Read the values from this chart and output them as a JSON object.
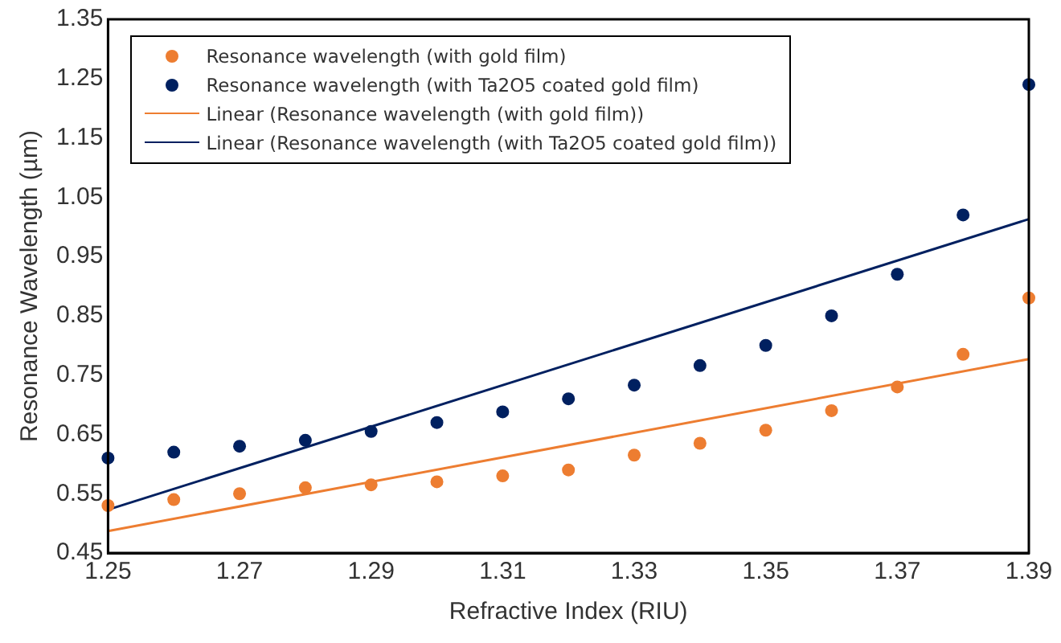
{
  "chart_data": {
    "type": "scatter",
    "xlabel": "Refractive Index (RIU)",
    "ylabel": "Resonance Wavelength (µm)",
    "xlim": [
      1.25,
      1.39
    ],
    "xticks": [
      1.25,
      1.27,
      1.29,
      1.31,
      1.33,
      1.35,
      1.37,
      1.39
    ],
    "ylim": [
      0.45,
      1.35
    ],
    "yticks": [
      0.45,
      0.55,
      0.65,
      0.75,
      0.85,
      0.95,
      1.05,
      1.15,
      1.25,
      1.35
    ],
    "grid": false,
    "legend": "top left",
    "series": [
      {
        "name": "Resonance wavelength (with gold film)",
        "type": "scatter",
        "marker": "circle",
        "color": "#ed7d31",
        "x": [
          1.25,
          1.26,
          1.27,
          1.28,
          1.29,
          1.3,
          1.31,
          1.32,
          1.33,
          1.34,
          1.35,
          1.36,
          1.37,
          1.38,
          1.39
        ],
        "values": [
          0.53,
          0.54,
          0.55,
          0.56,
          0.565,
          0.57,
          0.58,
          0.59,
          0.615,
          0.635,
          0.657,
          0.69,
          0.73,
          0.785,
          0.88
        ]
      },
      {
        "name": "Resonance wavelength (with Ta2O5 coated gold film)",
        "type": "scatter",
        "marker": "circle",
        "color": "#002060",
        "x": [
          1.25,
          1.26,
          1.27,
          1.28,
          1.29,
          1.3,
          1.31,
          1.32,
          1.33,
          1.34,
          1.35,
          1.36,
          1.37,
          1.38,
          1.39
        ],
        "values": [
          0.61,
          0.62,
          0.63,
          0.64,
          0.655,
          0.67,
          0.688,
          0.71,
          0.733,
          0.766,
          0.8,
          0.85,
          0.92,
          1.02,
          1.24
        ]
      },
      {
        "name": "Linear (Resonance wavelength (with gold film))",
        "type": "line",
        "marker": "none",
        "line_style": "solid",
        "color": "#ed7d31",
        "x": [
          1.25,
          1.39
        ],
        "values": [
          0.487,
          0.777
        ]
      },
      {
        "name": "Linear (Resonance wavelength (with Ta2O5 coated gold film))",
        "type": "line",
        "marker": "none",
        "line_style": "solid",
        "color": "#002060",
        "x": [
          1.25,
          1.39
        ],
        "values": [
          0.523,
          1.013
        ]
      }
    ]
  }
}
